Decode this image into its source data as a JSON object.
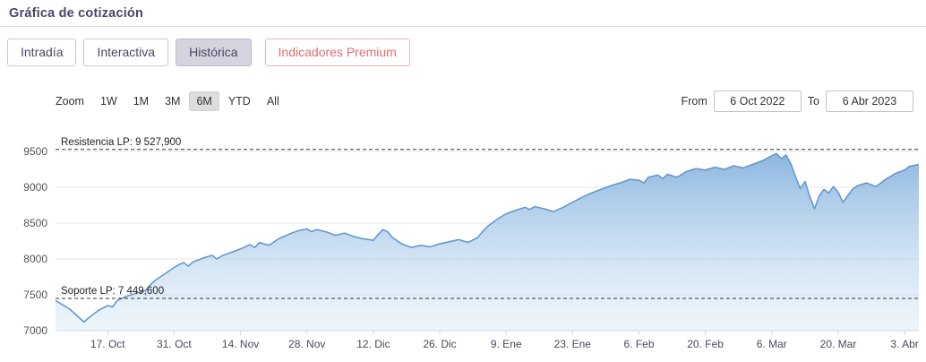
{
  "header": {
    "title": "Gráfica de cotización"
  },
  "tabs": [
    {
      "label": "Intradía"
    },
    {
      "label": "Interactiva"
    },
    {
      "label": "Histórica"
    },
    {
      "label": "Indicadores Premium"
    }
  ],
  "range_selector": {
    "zoom_label": "Zoom",
    "buttons": [
      {
        "label": "1W"
      },
      {
        "label": "1M"
      },
      {
        "label": "3M"
      },
      {
        "label": "6M"
      },
      {
        "label": "YTD"
      },
      {
        "label": "All"
      }
    ],
    "from_label": "From",
    "from_value": "6 Oct 2022",
    "to_label": "To",
    "to_value": "6 Abr 2023"
  },
  "chart_data": {
    "type": "area",
    "title": "",
    "xlabel": "",
    "ylabel": "",
    "x_unit": "days since 6 Oct 2022",
    "ylim": [
      7000,
      9750
    ],
    "yticks": [
      7000,
      7500,
      8000,
      8500,
      9000,
      9500
    ],
    "xticks": [
      {
        "pos": 11,
        "label": "17. Oct"
      },
      {
        "pos": 25,
        "label": "31. Oct"
      },
      {
        "pos": 39,
        "label": "14. Nov"
      },
      {
        "pos": 53,
        "label": "28. Nov"
      },
      {
        "pos": 67,
        "label": "12. Dic"
      },
      {
        "pos": 81,
        "label": "26. Dic"
      },
      {
        "pos": 95,
        "label": "9. Ene"
      },
      {
        "pos": 109,
        "label": "23. Ene"
      },
      {
        "pos": 123,
        "label": "6. Feb"
      },
      {
        "pos": 137,
        "label": "20. Feb"
      },
      {
        "pos": 151,
        "label": "6. Mar"
      },
      {
        "pos": 165,
        "label": "20. Mar"
      },
      {
        "pos": 179,
        "label": "3. Abr"
      }
    ],
    "x": [
      0,
      1,
      3,
      5,
      6,
      7,
      9,
      11,
      12,
      13,
      15,
      17,
      19,
      20,
      21,
      23,
      25,
      26,
      27,
      28,
      29,
      31,
      33,
      34,
      35,
      37,
      39,
      41,
      42,
      43,
      45,
      47,
      49,
      51,
      53,
      54,
      55,
      57,
      59,
      61,
      63,
      65,
      67,
      68,
      69,
      70,
      71,
      73,
      75,
      77,
      79,
      81,
      83,
      85,
      87,
      89,
      90,
      91,
      93,
      95,
      97,
      99,
      100,
      101,
      103,
      105,
      107,
      109,
      111,
      113,
      115,
      117,
      119,
      121,
      123,
      124,
      125,
      127,
      128,
      129,
      131,
      133,
      135,
      137,
      139,
      141,
      143,
      145,
      147,
      149,
      151,
      152,
      153,
      154,
      155,
      156,
      157,
      158,
      159,
      160,
      161,
      162,
      163,
      164,
      165,
      166,
      167,
      168,
      169,
      171,
      173,
      175,
      177,
      179,
      180,
      182
    ],
    "values": [
      7420,
      7380,
      7300,
      7180,
      7120,
      7180,
      7280,
      7350,
      7330,
      7420,
      7480,
      7520,
      7560,
      7640,
      7700,
      7790,
      7880,
      7920,
      7950,
      7900,
      7960,
      8010,
      8050,
      8000,
      8040,
      8090,
      8140,
      8200,
      8160,
      8230,
      8190,
      8280,
      8340,
      8390,
      8420,
      8380,
      8410,
      8380,
      8330,
      8360,
      8310,
      8280,
      8260,
      8340,
      8410,
      8380,
      8300,
      8210,
      8160,
      8190,
      8170,
      8210,
      8240,
      8270,
      8230,
      8300,
      8380,
      8450,
      8550,
      8630,
      8680,
      8720,
      8690,
      8730,
      8700,
      8660,
      8720,
      8790,
      8860,
      8920,
      8970,
      9020,
      9060,
      9110,
      9100,
      9060,
      9140,
      9170,
      9120,
      9180,
      9140,
      9220,
      9260,
      9240,
      9280,
      9250,
      9300,
      9270,
      9320,
      9370,
      9440,
      9470,
      9400,
      9450,
      9330,
      9150,
      8980,
      9080,
      8870,
      8700,
      8880,
      8970,
      8920,
      9010,
      8930,
      8790,
      8880,
      8970,
      9020,
      9060,
      9010,
      9110,
      9190,
      9240,
      9290,
      9320
    ],
    "plot_lines": [
      {
        "name": "resistance",
        "label": "Resistencia LP: 9 527,900",
        "value": 9527.9
      },
      {
        "name": "support",
        "label": "Soporte LP: 7 449,600",
        "value": 7449.6
      }
    ],
    "legend": "off",
    "grid": "on",
    "colors": {
      "line": "#6398d0",
      "fill_top": "#86b3de",
      "fill_bottom": "#e9f2fa",
      "grid": "#e6e6e6",
      "axis": "#ccd6eb",
      "plotline": "#333333",
      "tick_text": "#474964",
      "ytick_text": "#555555"
    }
  }
}
